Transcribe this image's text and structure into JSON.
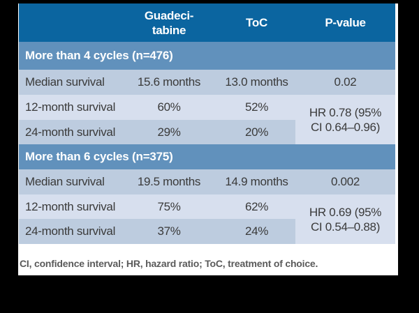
{
  "colors": {
    "frame_bg": "#000000",
    "page_bg": "#ffffff",
    "header_bg": "#0b65a0",
    "section_bg": "#6191bc",
    "row_dark_bg": "#bdccdf",
    "row_light_bg": "#d7dfee",
    "header_text": "#ffffff",
    "body_text": "#3a3a3a",
    "footnote_text": "#5a5a5a"
  },
  "header": {
    "col1": "",
    "col2_line1": "Guadeci-",
    "col2_line2": "tabine",
    "col3": "ToC",
    "col4": "P-value"
  },
  "sections": [
    {
      "title": "More than 4 cycles (n=476)",
      "rows": [
        {
          "label": "Median survival",
          "guadecitabine": "15.6 months",
          "toc": "13.0 months",
          "p_value": "0.02"
        },
        {
          "label": "12-month survival",
          "guadecitabine": "60%",
          "toc": "52%"
        },
        {
          "label": "24-month survival",
          "guadecitabine": "29%",
          "toc": "20%"
        }
      ],
      "hazard_ratio_line1": "HR 0.78 (95%",
      "hazard_ratio_line2": "CI 0.64–0.96)"
    },
    {
      "title": "More than 6 cycles (n=375)",
      "rows": [
        {
          "label": "Median survival",
          "guadecitabine": "19.5 months",
          "toc": "14.9 months",
          "p_value": "0.002"
        },
        {
          "label": "12-month survival",
          "guadecitabine": "75%",
          "toc": "62%"
        },
        {
          "label": "24-month survival",
          "guadecitabine": "37%",
          "toc": "24%"
        }
      ],
      "hazard_ratio_line1": "HR 0.69 (95%",
      "hazard_ratio_line2": "CI 0.54–0.88)"
    }
  ],
  "footnote": "CI, confidence interval; HR, hazard ratio; ToC, treatment of choice.",
  "chart_data": {
    "type": "table",
    "columns": [
      "",
      "Guadecitabine",
      "ToC",
      "P-value"
    ],
    "sections": [
      {
        "header": "More than 4 cycles (n=476)",
        "rows": [
          {
            "label": "Median survival",
            "guadecitabine": "15.6 months",
            "toc": "13.0 months",
            "p_value": "0.02"
          },
          {
            "label": "12-month survival",
            "guadecitabine": "60%",
            "toc": "52%",
            "p_value": "HR 0.78 (95% CI 0.64–0.96)"
          },
          {
            "label": "24-month survival",
            "guadecitabine": "29%",
            "toc": "20%",
            "p_value": "HR 0.78 (95% CI 0.64–0.96)"
          }
        ]
      },
      {
        "header": "More than 6 cycles (n=375)",
        "rows": [
          {
            "label": "Median survival",
            "guadecitabine": "19.5 months",
            "toc": "14.9 months",
            "p_value": "0.002"
          },
          {
            "label": "12-month survival",
            "guadecitabine": "75%",
            "toc": "62%",
            "p_value": "HR 0.69 (95% CI 0.54–0.88)"
          },
          {
            "label": "24-month survival",
            "guadecitabine": "37%",
            "toc": "24%",
            "p_value": "HR 0.69 (95% CI 0.54–0.88)"
          }
        ]
      }
    ]
  }
}
